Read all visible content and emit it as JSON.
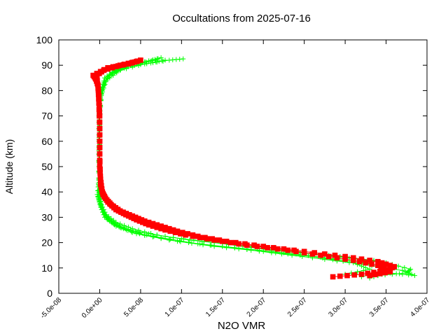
{
  "chart_data": {
    "type": "scatter",
    "title": "Occultations from 2025-07-16",
    "xlabel": "N2O VMR",
    "ylabel": "Altitude (km)",
    "xlim": [
      -5e-08,
      4e-07
    ],
    "ylim": [
      0,
      100
    ],
    "x_ticks": [
      -5e-08,
      0,
      5e-08,
      1e-07,
      1.5e-07,
      2e-07,
      2.5e-07,
      3e-07,
      3.5e-07,
      4e-07
    ],
    "x_tick_labels": [
      "-5.0e-08",
      "0.0e+00",
      "5.0e-08",
      "1.0e-07",
      "1.5e-07",
      "2.0e-07",
      "2.5e-07",
      "3.0e-07",
      "3.5e-07",
      "4.0e-07"
    ],
    "y_ticks": [
      0,
      10,
      20,
      30,
      40,
      50,
      60,
      70,
      80,
      90,
      100
    ],
    "y_tick_labels": [
      "0",
      "10",
      "20",
      "30",
      "40",
      "50",
      "60",
      "70",
      "80",
      "90",
      "100"
    ],
    "grid": false,
    "legend": "none",
    "series": [
      {
        "name": "green profiles",
        "color": "#00ff00",
        "marker": "plus",
        "profiles": [
          [
            [
              3.3e-07,
              6
            ],
            [
              3.5e-07,
              8
            ],
            [
              3.6e-07,
              10
            ],
            [
              3.35e-07,
              13
            ],
            [
              2.8e-07,
              15
            ],
            [
              2.1e-07,
              17
            ],
            [
              1.4e-07,
              20
            ],
            [
              9e-08,
              22
            ],
            [
              5e-08,
              24
            ],
            [
              2.5e-08,
              26
            ],
            [
              1e-08,
              29
            ],
            [
              3e-09,
              33
            ],
            [
              1e-09,
              36
            ],
            [
              -1e-09,
              40
            ],
            [
              -1e-09,
              50
            ],
            [
              -1e-09,
              60
            ],
            [
              -1e-09,
              70
            ],
            [
              0.0,
              75
            ],
            [
              2e-09,
              80
            ],
            [
              6e-09,
              85
            ],
            [
              1.8e-08,
              88
            ],
            [
              4e-08,
              90
            ],
            [
              6e-08,
              91.5
            ],
            [
              7.5e-08,
              93
            ]
          ],
          [
            [
              3.4e-07,
              7
            ],
            [
              3.75e-07,
              8
            ],
            [
              3.8e-07,
              9.5
            ],
            [
              3.5e-07,
              12
            ],
            [
              2.9e-07,
              14.5
            ],
            [
              2.3e-07,
              16.5
            ],
            [
              1.7e-07,
              19
            ],
            [
              1.1e-07,
              21
            ],
            [
              7e-08,
              23
            ],
            [
              4e-08,
              25.5
            ],
            [
              2e-08,
              28
            ],
            [
              8e-09,
              31
            ],
            [
              2e-09,
              35
            ],
            [
              0.0,
              40
            ],
            [
              0.0,
              55
            ],
            [
              0.0,
              70
            ],
            [
              2e-09,
              78
            ],
            [
              8e-09,
              84
            ],
            [
              2.5e-08,
              88
            ],
            [
              5.5e-08,
              90.5
            ],
            [
              8.5e-08,
              92
            ],
            [
              1.02e-07,
              92.5
            ]
          ],
          [
            [
              3.2e-07,
              6.5
            ],
            [
              3.5e-07,
              9
            ],
            [
              3.4e-07,
              11
            ],
            [
              3e-07,
              13
            ],
            [
              2.4e-07,
              15.5
            ],
            [
              1.8e-07,
              17.5
            ],
            [
              1.2e-07,
              19.5
            ],
            [
              7.5e-08,
              22
            ],
            [
              4e-08,
              24
            ],
            [
              1.8e-08,
              27
            ],
            [
              6e-09,
              30
            ],
            [
              1e-09,
              34
            ],
            [
              -2e-09,
              38
            ],
            [
              -1e-09,
              48
            ],
            [
              -1e-09,
              65
            ],
            [
              1e-09,
              77
            ],
            [
              5e-09,
              83
            ],
            [
              1.5e-08,
              87
            ],
            [
              3.5e-08,
              89.5
            ],
            [
              6.5e-08,
              91
            ],
            [
              8e-08,
              92
            ]
          ],
          [
            [
              3.55e-07,
              8
            ],
            [
              3.85e-07,
              7
            ],
            [
              3.7e-07,
              9
            ],
            [
              3.2e-07,
              11.5
            ],
            [
              2.6e-07,
              14
            ],
            [
              2.1e-07,
              16
            ],
            [
              1.5e-07,
              18.5
            ],
            [
              9.5e-08,
              20.5
            ],
            [
              5.5e-08,
              23
            ],
            [
              2.8e-08,
              26
            ],
            [
              1.2e-08,
              29
            ],
            [
              4e-09,
              32
            ],
            [
              0.0,
              36
            ],
            [
              -3e-09,
              39
            ],
            [
              -1e-09,
              45
            ],
            [
              -1e-09,
              58
            ],
            [
              0.0,
              72
            ],
            [
              3e-09,
              81
            ],
            [
              1.2e-08,
              86
            ],
            [
              3e-08,
              89
            ],
            [
              5e-08,
              91
            ],
            [
              7e-08,
              92.5
            ]
          ],
          [
            [
              3e-07,
              7.5
            ],
            [
              3.3e-07,
              9.5
            ],
            [
              3.1e-07,
              12
            ],
            [
              2.6e-07,
              14.5
            ],
            [
              2e-07,
              16.5
            ],
            [
              1.4e-07,
              18.5
            ],
            [
              8.5e-08,
              21
            ],
            [
              4.5e-08,
              23.5
            ],
            [
              2e-08,
              26.5
            ],
            [
              8e-09,
              30
            ],
            [
              2e-09,
              34
            ],
            [
              -1e-09,
              37
            ],
            [
              -1e-09,
              52
            ],
            [
              0.0,
              68
            ],
            [
              2e-09,
              79
            ],
            [
              9e-09,
              85
            ],
            [
              2.2e-08,
              88.5
            ],
            [
              4.5e-08,
              90.5
            ],
            [
              6.8e-08,
              92
            ]
          ]
        ]
      },
      {
        "name": "red profiles",
        "color": "#ff0000",
        "marker": "filled-square",
        "profiles": [
          [
            [
              2.85e-07,
              6.5
            ],
            [
              3.2e-07,
              7.5
            ],
            [
              3.5e-07,
              9
            ],
            [
              3.6e-07,
              10.5
            ],
            [
              3.4e-07,
              12.5
            ],
            [
              3e-07,
              14.5
            ],
            [
              2.5e-07,
              16.5
            ],
            [
              2e-07,
              18.5
            ],
            [
              1.55e-07,
              20.5
            ],
            [
              1.2e-07,
              22.5
            ],
            [
              9.5e-08,
              24.5
            ],
            [
              7.5e-08,
              26.5
            ],
            [
              5.5e-08,
              28.5
            ],
            [
              4e-08,
              30.5
            ],
            [
              2.5e-08,
              32.5
            ],
            [
              1.4e-08,
              35
            ],
            [
              7e-09,
              37.5
            ],
            [
              3e-09,
              40
            ],
            [
              1e-09,
              45
            ],
            [
              0.0,
              50
            ],
            [
              0.0,
              60
            ],
            [
              0.0,
              70
            ],
            [
              -1e-09,
              78
            ],
            [
              -3e-09,
              84
            ],
            [
              -8e-09,
              86
            ],
            [
              1e-08,
              89
            ],
            [
              3.5e-08,
              90.5
            ],
            [
              5e-08,
              92
            ]
          ],
          [
            [
              3.3e-07,
              7
            ],
            [
              3.55e-07,
              8.5
            ],
            [
              3.4e-07,
              11
            ],
            [
              3.1e-07,
              13
            ],
            [
              2.7e-07,
              15
            ],
            [
              2.3e-07,
              17
            ],
            [
              1.8e-07,
              19
            ],
            [
              1.4e-07,
              21
            ],
            [
              1.05e-07,
              23
            ],
            [
              8e-08,
              25
            ],
            [
              6e-08,
              27
            ],
            [
              4.5e-08,
              29
            ],
            [
              3.2e-08,
              31
            ],
            [
              2e-08,
              33
            ],
            [
              1e-08,
              36
            ],
            [
              4e-09,
              39
            ],
            [
              1e-09,
              43
            ],
            [
              0.0,
              55
            ],
            [
              0.0,
              65
            ],
            [
              -1e-09,
              75
            ],
            [
              -2e-09,
              82
            ],
            [
              -6e-09,
              85.5
            ],
            [
              5e-09,
              88
            ],
            [
              2.5e-08,
              90
            ],
            [
              4.5e-08,
              91.5
            ]
          ]
        ]
      }
    ]
  }
}
